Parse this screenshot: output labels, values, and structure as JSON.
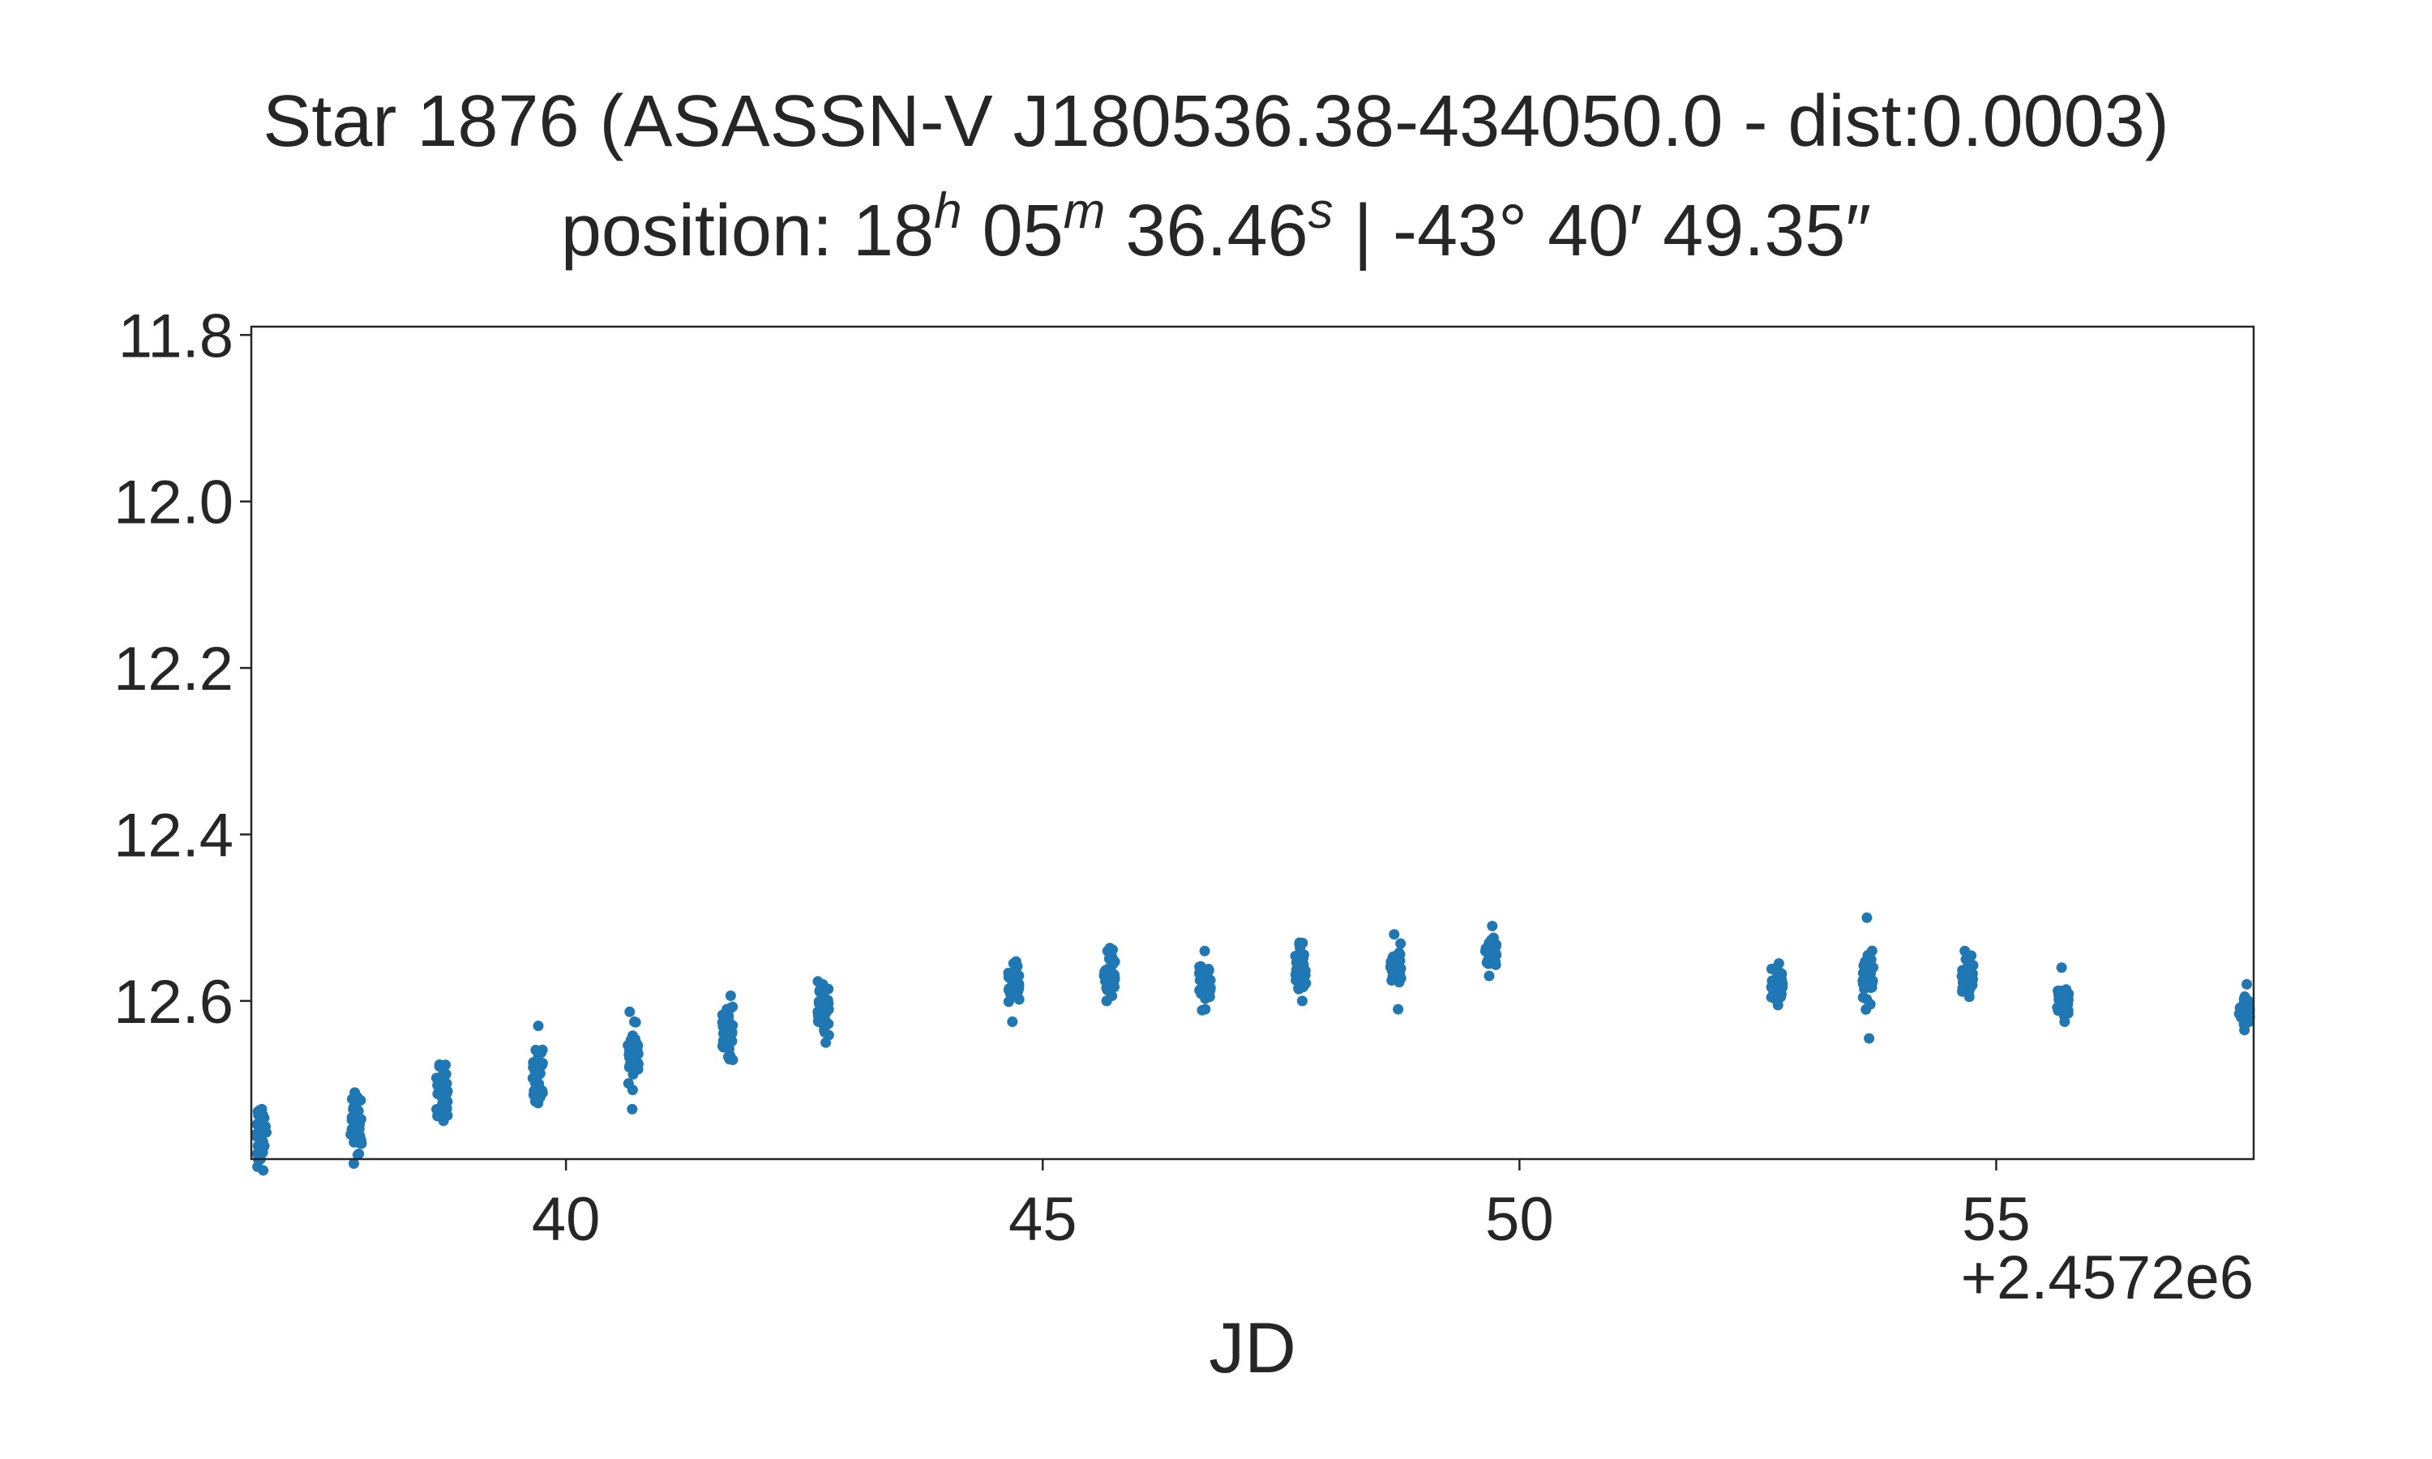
{
  "title": {
    "line1": "Star 1876 (ASASSN-V J180536.38-434050.0 - dist:0.0003)",
    "line2_prefix": "position: 18",
    "ra_h_sup": "h",
    "ra_min": " 05",
    "ra_m_sup": "m",
    "ra_sec": " 36.46",
    "ra_s_sup": "s",
    "line2_suffix": " | -43° 40′ 49.35″"
  },
  "chart_data": {
    "type": "scatter",
    "xlabel": "JD",
    "ylabel": "",
    "x_offset_label": "+2.4572e6",
    "x_offset": 2457200,
    "xlim": [
      36.7,
      57.7
    ],
    "ylim": [
      12.79,
      11.79
    ],
    "y_inverted": true,
    "grid": false,
    "marker_color": "#1f77b4",
    "x_ticks": [
      40,
      45,
      50,
      55
    ],
    "x_tick_labels": [
      "40",
      "45",
      "50",
      "55"
    ],
    "y_ticks": [
      11.8,
      12.0,
      12.2,
      12.4,
      12.6
    ],
    "y_tick_labels": [
      "11.8",
      "12.0",
      "12.2",
      "12.4",
      "12.6"
    ],
    "groups": [
      {
        "x_center": 36.8,
        "mag_center": 12.76,
        "spread": 0.03,
        "extremes": [
          12.73,
          12.79
        ]
      },
      {
        "x_center": 37.8,
        "mag_center": 12.75,
        "spread": 0.03,
        "extremes": [
          12.71,
          12.785
        ]
      },
      {
        "x_center": 38.7,
        "mag_center": 12.71,
        "spread": 0.025,
        "extremes": [
          12.69,
          12.735
        ]
      },
      {
        "x_center": 39.7,
        "mag_center": 12.69,
        "spread": 0.025,
        "extremes": [
          12.63,
          12.715
        ]
      },
      {
        "x_center": 40.7,
        "mag_center": 12.66,
        "spread": 0.03,
        "extremes": [
          12.625,
          12.73
        ]
      },
      {
        "x_center": 41.7,
        "mag_center": 12.64,
        "spread": 0.025,
        "extremes": [
          12.61,
          12.67
        ]
      },
      {
        "x_center": 42.7,
        "mag_center": 12.61,
        "spread": 0.025,
        "extremes": [
          12.58,
          12.65
        ]
      },
      {
        "x_center": 44.7,
        "mag_center": 12.58,
        "spread": 0.02,
        "extremes": [
          12.555,
          12.625
        ]
      },
      {
        "x_center": 45.7,
        "mag_center": 12.57,
        "spread": 0.02,
        "extremes": [
          12.54,
          12.6
        ]
      },
      {
        "x_center": 46.7,
        "mag_center": 12.58,
        "spread": 0.02,
        "extremes": [
          12.54,
          12.61
        ]
      },
      {
        "x_center": 47.7,
        "mag_center": 12.56,
        "spread": 0.02,
        "extremes": [
          12.53,
          12.6
        ]
      },
      {
        "x_center": 48.7,
        "mag_center": 12.56,
        "spread": 0.02,
        "extremes": [
          12.52,
          12.61
        ]
      },
      {
        "x_center": 49.7,
        "mag_center": 12.545,
        "spread": 0.015,
        "extremes": [
          12.51,
          12.57
        ]
      },
      {
        "x_center": 52.7,
        "mag_center": 12.58,
        "spread": 0.018,
        "extremes": [
          12.555,
          12.605
        ]
      },
      {
        "x_center": 53.65,
        "mag_center": 12.575,
        "spread": 0.025,
        "extremes": [
          12.5,
          12.645
        ]
      },
      {
        "x_center": 54.7,
        "mag_center": 12.57,
        "spread": 0.015,
        "extremes": [
          12.54,
          12.595
        ]
      },
      {
        "x_center": 55.7,
        "mag_center": 12.6,
        "spread": 0.015,
        "extremes": [
          12.56,
          12.625
        ]
      },
      {
        "x_center": 57.6,
        "mag_center": 12.61,
        "spread": 0.015,
        "extremes": [
          12.58,
          12.635
        ]
      }
    ]
  }
}
